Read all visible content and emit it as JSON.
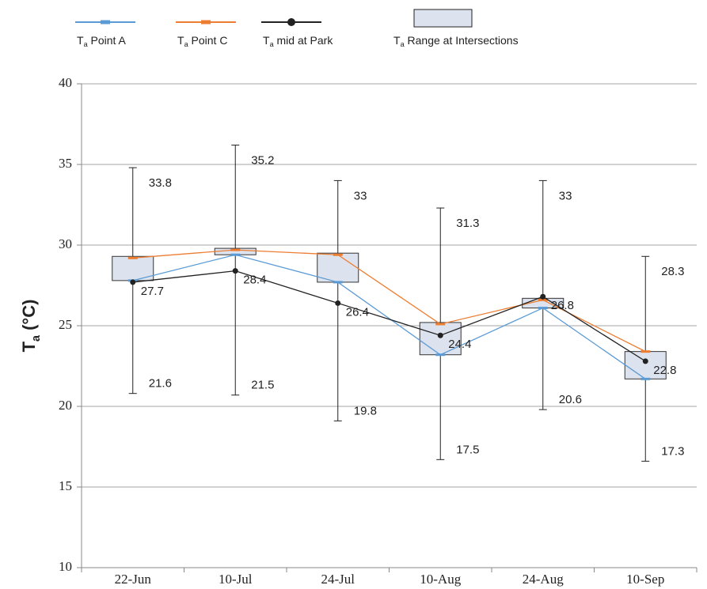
{
  "chart_data": {
    "type": "range-line",
    "y_label": "Ta (°C)",
    "categories": [
      "22-Jun",
      "10-Jul",
      "24-Jul",
      "10-Aug",
      "24-Aug",
      "10-Sep"
    ],
    "series": [
      {
        "name": "Ta Point A",
        "color": "#5b9bd5",
        "values": [
          27.8,
          29.4,
          27.7,
          23.2,
          26.1,
          21.7
        ]
      },
      {
        "name": "Ta Point C",
        "color": "#ed7d31",
        "values": [
          29.2,
          29.7,
          29.4,
          25.1,
          26.6,
          23.4
        ]
      },
      {
        "name": "Ta mid at Park",
        "color": "#222222",
        "values": [
          27.7,
          28.4,
          26.4,
          24.4,
          26.8,
          22.8
        ]
      }
    ],
    "range_name": "Ta Range at Intersections",
    "range_color": "#dde3ee",
    "box_low": [
      27.8,
      29.4,
      27.7,
      23.2,
      26.1,
      21.7
    ],
    "box_high": [
      29.3,
      29.8,
      29.5,
      25.2,
      26.7,
      23.4
    ],
    "whisker_high": [
      34.8,
      36.2,
      34.0,
      32.3,
      34.0,
      29.3
    ],
    "whisker_low": [
      20.8,
      20.7,
      19.1,
      16.7,
      19.8,
      16.6
    ],
    "high_annotations": [
      "33.8",
      "35.2",
      "33",
      "31.3",
      "33",
      "28.3"
    ],
    "low_annotations": [
      "21.6",
      "21.5",
      "19.8",
      "17.5",
      "20.6",
      "17.3"
    ],
    "ylim": [
      10,
      40
    ],
    "yticks": [
      10,
      15,
      20,
      25,
      30,
      35,
      40
    ],
    "grid": true
  }
}
